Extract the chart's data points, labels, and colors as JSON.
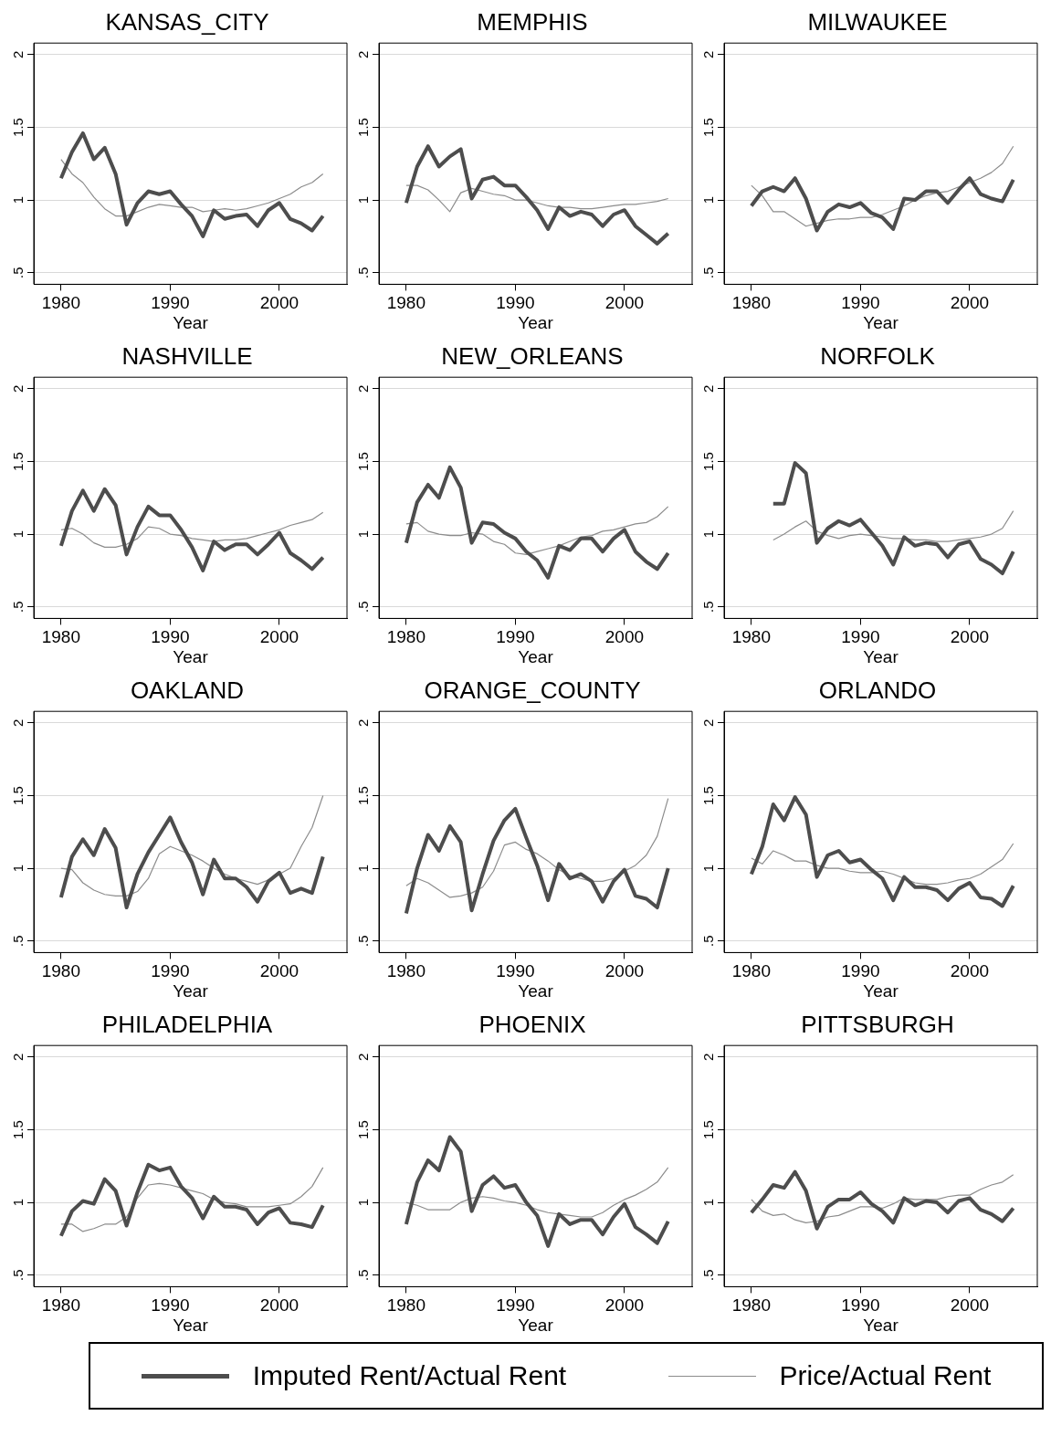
{
  "chart_data": [
    {
      "type": "line",
      "title": "KANSAS_CITY",
      "xlabel": "Year",
      "x": [
        1980,
        1981,
        1982,
        1983,
        1984,
        1985,
        1986,
        1987,
        1988,
        1989,
        1990,
        1991,
        1992,
        1993,
        1994,
        1995,
        1996,
        1997,
        1998,
        1999,
        2000,
        2001,
        2002,
        2003,
        2004
      ],
      "xlim": [
        1977.5,
        2006.2
      ],
      "xticks": [
        1980,
        1990,
        2000
      ],
      "ylim": [
        0.42,
        2.08
      ],
      "yticks": [
        {
          "value": 0.5,
          "label": ".5"
        },
        {
          "value": 1,
          "label": "1"
        },
        {
          "value": 1.5,
          "label": "1.5"
        },
        {
          "value": 2,
          "label": "2"
        }
      ],
      "grid": "y",
      "legend": "bottom",
      "series": [
        {
          "name": "Imputed Rent/Actual Rent",
          "color": "#4d4d4d",
          "values": [
            1.15,
            1.33,
            1.46,
            1.28,
            1.36,
            1.18,
            0.83,
            0.98,
            1.06,
            1.04,
            1.06,
            0.97,
            0.89,
            0.75,
            0.93,
            0.87,
            0.89,
            0.9,
            0.82,
            0.93,
            0.98,
            0.87,
            0.84,
            0.79,
            0.89
          ]
        },
        {
          "name": "Price/Actual Rent",
          "color": "#8c8c8c",
          "values": [
            1.28,
            1.18,
            1.12,
            1.02,
            0.94,
            0.89,
            0.89,
            0.92,
            0.95,
            0.97,
            0.96,
            0.95,
            0.95,
            0.92,
            0.93,
            0.94,
            0.93,
            0.94,
            0.96,
            0.98,
            1.01,
            1.04,
            1.09,
            1.12,
            1.18
          ]
        }
      ]
    },
    {
      "type": "line",
      "title": "MEMPHIS",
      "xlabel": "Year",
      "x": [
        1980,
        1981,
        1982,
        1983,
        1984,
        1985,
        1986,
        1987,
        1988,
        1989,
        1990,
        1991,
        1992,
        1993,
        1994,
        1995,
        1996,
        1997,
        1998,
        1999,
        2000,
        2001,
        2002,
        2003,
        2004
      ],
      "xlim": [
        1977.5,
        2006.2
      ],
      "xticks": [
        1980,
        1990,
        2000
      ],
      "ylim": [
        0.42,
        2.08
      ],
      "yticks": [
        {
          "value": 0.5,
          "label": ".5"
        },
        {
          "value": 1,
          "label": "1"
        },
        {
          "value": 1.5,
          "label": "1.5"
        },
        {
          "value": 2,
          "label": "2"
        }
      ],
      "grid": "y",
      "series": [
        {
          "color": "#4d4d4d",
          "values": [
            0.98,
            1.23,
            1.37,
            1.23,
            1.3,
            1.35,
            1.01,
            1.14,
            1.16,
            1.1,
            1.1,
            1.02,
            0.93,
            0.8,
            0.95,
            0.89,
            0.92,
            0.9,
            0.82,
            0.9,
            0.93,
            0.82,
            0.76,
            0.7,
            0.77
          ]
        },
        {
          "color": "#8c8c8c",
          "values": [
            1.1,
            1.1,
            1.07,
            1.0,
            0.92,
            1.05,
            1.08,
            1.06,
            1.04,
            1.03,
            1.0,
            1.0,
            0.98,
            0.96,
            0.95,
            0.95,
            0.94,
            0.94,
            0.95,
            0.96,
            0.97,
            0.97,
            0.98,
            0.99,
            1.01
          ]
        }
      ]
    },
    {
      "type": "line",
      "title": "MILWAUKEE",
      "xlabel": "Year",
      "x": [
        1980,
        1981,
        1982,
        1983,
        1984,
        1985,
        1986,
        1987,
        1988,
        1989,
        1990,
        1991,
        1992,
        1993,
        1994,
        1995,
        1996,
        1997,
        1998,
        1999,
        2000,
        2001,
        2002,
        2003,
        2004
      ],
      "xlim": [
        1977.5,
        2006.2
      ],
      "xticks": [
        1980,
        1990,
        2000
      ],
      "ylim": [
        0.42,
        2.08
      ],
      "yticks": [
        {
          "value": 0.5,
          "label": ".5"
        },
        {
          "value": 1,
          "label": "1"
        },
        {
          "value": 1.5,
          "label": "1.5"
        },
        {
          "value": 2,
          "label": "2"
        }
      ],
      "grid": "y",
      "series": [
        {
          "color": "#4d4d4d",
          "values": [
            0.96,
            1.06,
            1.09,
            1.06,
            1.15,
            1.01,
            0.79,
            0.92,
            0.97,
            0.95,
            0.98,
            0.91,
            0.88,
            0.8,
            1.01,
            1.0,
            1.06,
            1.06,
            0.98,
            1.07,
            1.15,
            1.04,
            1.01,
            0.99,
            1.14
          ]
        },
        {
          "color": "#8c8c8c",
          "values": [
            1.1,
            1.03,
            0.92,
            0.92,
            0.87,
            0.82,
            0.84,
            0.86,
            0.87,
            0.87,
            0.88,
            0.88,
            0.9,
            0.93,
            0.96,
            1.0,
            1.03,
            1.05,
            1.06,
            1.09,
            1.12,
            1.15,
            1.19,
            1.25,
            1.37
          ]
        }
      ]
    },
    {
      "type": "line",
      "title": "NASHVILLE",
      "xlabel": "Year",
      "x": [
        1980,
        1981,
        1982,
        1983,
        1984,
        1985,
        1986,
        1987,
        1988,
        1989,
        1990,
        1991,
        1992,
        1993,
        1994,
        1995,
        1996,
        1997,
        1998,
        1999,
        2000,
        2001,
        2002,
        2003,
        2004
      ],
      "xlim": [
        1977.5,
        2006.2
      ],
      "xticks": [
        1980,
        1990,
        2000
      ],
      "ylim": [
        0.42,
        2.08
      ],
      "yticks": [
        {
          "value": 0.5,
          "label": ".5"
        },
        {
          "value": 1,
          "label": "1"
        },
        {
          "value": 1.5,
          "label": "1.5"
        },
        {
          "value": 2,
          "label": "2"
        }
      ],
      "grid": "y",
      "series": [
        {
          "color": "#4d4d4d",
          "values": [
            0.92,
            1.16,
            1.3,
            1.16,
            1.31,
            1.2,
            0.86,
            1.05,
            1.19,
            1.13,
            1.13,
            1.03,
            0.91,
            0.75,
            0.95,
            0.89,
            0.93,
            0.93,
            0.86,
            0.93,
            1.01,
            0.87,
            0.82,
            0.76,
            0.84
          ]
        },
        {
          "color": "#8c8c8c",
          "values": [
            1.03,
            1.04,
            1.0,
            0.94,
            0.91,
            0.91,
            0.93,
            0.97,
            1.05,
            1.04,
            1.0,
            0.99,
            0.97,
            0.96,
            0.95,
            0.96,
            0.96,
            0.97,
            0.99,
            1.01,
            1.03,
            1.06,
            1.08,
            1.1,
            1.15
          ]
        }
      ]
    },
    {
      "type": "line",
      "title": "NEW_ORLEANS",
      "xlabel": "Year",
      "x": [
        1980,
        1981,
        1982,
        1983,
        1984,
        1985,
        1986,
        1987,
        1988,
        1989,
        1990,
        1991,
        1992,
        1993,
        1994,
        1995,
        1996,
        1997,
        1998,
        1999,
        2000,
        2001,
        2002,
        2003,
        2004
      ],
      "xlim": [
        1977.5,
        2006.2
      ],
      "xticks": [
        1980,
        1990,
        2000
      ],
      "ylim": [
        0.42,
        2.08
      ],
      "yticks": [
        {
          "value": 0.5,
          "label": ".5"
        },
        {
          "value": 1,
          "label": "1"
        },
        {
          "value": 1.5,
          "label": "1.5"
        },
        {
          "value": 2,
          "label": "2"
        }
      ],
      "grid": "y",
      "series": [
        {
          "color": "#4d4d4d",
          "values": [
            0.94,
            1.22,
            1.34,
            1.25,
            1.46,
            1.32,
            0.94,
            1.08,
            1.07,
            1.01,
            0.97,
            0.88,
            0.82,
            0.7,
            0.92,
            0.89,
            0.97,
            0.97,
            0.88,
            0.97,
            1.03,
            0.88,
            0.81,
            0.76,
            0.87
          ]
        },
        {
          "color": "#8c8c8c",
          "values": [
            1.07,
            1.08,
            1.02,
            1.0,
            0.99,
            0.99,
            1.01,
            1.0,
            0.95,
            0.93,
            0.87,
            0.86,
            0.88,
            0.9,
            0.92,
            0.95,
            0.98,
            0.99,
            1.02,
            1.03,
            1.05,
            1.07,
            1.08,
            1.12,
            1.19
          ]
        }
      ]
    },
    {
      "type": "line",
      "title": "NORFOLK",
      "xlabel": "Year",
      "x": [
        1982,
        1983,
        1984,
        1985,
        1986,
        1987,
        1988,
        1989,
        1990,
        1991,
        1992,
        1993,
        1994,
        1995,
        1996,
        1997,
        1998,
        1999,
        2000,
        2001,
        2002,
        2003,
        2004
      ],
      "xlim": [
        1977.5,
        2006.2
      ],
      "xticks": [
        1980,
        1990,
        2000
      ],
      "ylim": [
        0.42,
        2.08
      ],
      "yticks": [
        {
          "value": 0.5,
          "label": ".5"
        },
        {
          "value": 1,
          "label": "1"
        },
        {
          "value": 1.5,
          "label": "1.5"
        },
        {
          "value": 2,
          "label": "2"
        }
      ],
      "grid": "y",
      "series": [
        {
          "color": "#4d4d4d",
          "values": [
            1.21,
            1.21,
            1.49,
            1.42,
            0.94,
            1.04,
            1.09,
            1.06,
            1.1,
            1.01,
            0.92,
            0.79,
            0.98,
            0.92,
            0.94,
            0.93,
            0.84,
            0.93,
            0.95,
            0.83,
            0.79,
            0.73,
            0.88
          ]
        },
        {
          "color": "#8c8c8c",
          "values": [
            0.96,
            1.0,
            1.05,
            1.09,
            1.02,
            0.99,
            0.97,
            0.99,
            1.0,
            0.99,
            0.98,
            0.97,
            0.97,
            0.96,
            0.96,
            0.95,
            0.95,
            0.96,
            0.97,
            0.98,
            1.0,
            1.04,
            1.16
          ]
        }
      ]
    },
    {
      "type": "line",
      "title": "OAKLAND",
      "xlabel": "Year",
      "x": [
        1980,
        1981,
        1982,
        1983,
        1984,
        1985,
        1986,
        1987,
        1988,
        1989,
        1990,
        1991,
        1992,
        1993,
        1994,
        1995,
        1996,
        1997,
        1998,
        1999,
        2000,
        2001,
        2002,
        2003,
        2004
      ],
      "xlim": [
        1977.5,
        2006.2
      ],
      "xticks": [
        1980,
        1990,
        2000
      ],
      "ylim": [
        0.42,
        2.08
      ],
      "yticks": [
        {
          "value": 0.5,
          "label": ".5"
        },
        {
          "value": 1,
          "label": "1"
        },
        {
          "value": 1.5,
          "label": "1.5"
        },
        {
          "value": 2,
          "label": "2"
        }
      ],
      "grid": "y",
      "series": [
        {
          "color": "#4d4d4d",
          "values": [
            0.8,
            1.08,
            1.2,
            1.09,
            1.27,
            1.14,
            0.73,
            0.96,
            1.11,
            1.23,
            1.35,
            1.18,
            1.04,
            0.82,
            1.06,
            0.93,
            0.93,
            0.87,
            0.77,
            0.91,
            0.97,
            0.83,
            0.86,
            0.83,
            1.08
          ]
        },
        {
          "color": "#8c8c8c",
          "values": [
            1.0,
            0.99,
            0.9,
            0.85,
            0.82,
            0.81,
            0.81,
            0.84,
            0.93,
            1.1,
            1.15,
            1.12,
            1.09,
            1.05,
            1.0,
            0.96,
            0.93,
            0.91,
            0.89,
            0.92,
            0.96,
            1.0,
            1.15,
            1.28,
            1.5
          ]
        }
      ]
    },
    {
      "type": "line",
      "title": "ORANGE_COUNTY",
      "xlabel": "Year",
      "x": [
        1980,
        1981,
        1982,
        1983,
        1984,
        1985,
        1986,
        1987,
        1988,
        1989,
        1990,
        1991,
        1992,
        1993,
        1994,
        1995,
        1996,
        1997,
        1998,
        1999,
        2000,
        2001,
        2002,
        2003,
        2004
      ],
      "xlim": [
        1977.5,
        2006.2
      ],
      "xticks": [
        1980,
        1990,
        2000
      ],
      "ylim": [
        0.42,
        2.08
      ],
      "yticks": [
        {
          "value": 0.5,
          "label": ".5"
        },
        {
          "value": 1,
          "label": "1"
        },
        {
          "value": 1.5,
          "label": "1.5"
        },
        {
          "value": 2,
          "label": "2"
        }
      ],
      "grid": "y",
      "series": [
        {
          "color": "#4d4d4d",
          "values": [
            0.69,
            1.0,
            1.23,
            1.12,
            1.29,
            1.18,
            0.71,
            0.96,
            1.19,
            1.33,
            1.41,
            1.21,
            1.02,
            0.78,
            1.03,
            0.93,
            0.96,
            0.91,
            0.77,
            0.91,
            0.99,
            0.81,
            0.79,
            0.73,
            1.0
          ]
        },
        {
          "color": "#8c8c8c",
          "values": [
            0.88,
            0.93,
            0.9,
            0.85,
            0.8,
            0.81,
            0.83,
            0.87,
            0.98,
            1.16,
            1.18,
            1.13,
            1.1,
            1.05,
            0.99,
            0.95,
            0.93,
            0.91,
            0.91,
            0.93,
            0.98,
            1.02,
            1.09,
            1.22,
            1.48
          ]
        }
      ]
    },
    {
      "type": "line",
      "title": "ORLANDO",
      "xlabel": "Year",
      "x": [
        1980,
        1981,
        1982,
        1983,
        1984,
        1985,
        1986,
        1987,
        1988,
        1989,
        1990,
        1991,
        1992,
        1993,
        1994,
        1995,
        1996,
        1997,
        1998,
        1999,
        2000,
        2001,
        2002,
        2003,
        2004
      ],
      "xlim": [
        1977.5,
        2006.2
      ],
      "xticks": [
        1980,
        1990,
        2000
      ],
      "ylim": [
        0.42,
        2.08
      ],
      "yticks": [
        {
          "value": 0.5,
          "label": ".5"
        },
        {
          "value": 1,
          "label": "1"
        },
        {
          "value": 1.5,
          "label": "1.5"
        },
        {
          "value": 2,
          "label": "2"
        }
      ],
      "grid": "y",
      "series": [
        {
          "color": "#4d4d4d",
          "values": [
            0.96,
            1.15,
            1.44,
            1.33,
            1.49,
            1.37,
            0.94,
            1.09,
            1.12,
            1.04,
            1.06,
            0.99,
            0.93,
            0.78,
            0.94,
            0.87,
            0.87,
            0.85,
            0.78,
            0.86,
            0.9,
            0.8,
            0.79,
            0.74,
            0.88
          ]
        },
        {
          "color": "#8c8c8c",
          "values": [
            1.07,
            1.03,
            1.12,
            1.09,
            1.05,
            1.05,
            1.02,
            1.0,
            1.0,
            0.98,
            0.97,
            0.97,
            0.98,
            0.96,
            0.93,
            0.9,
            0.89,
            0.89,
            0.9,
            0.92,
            0.93,
            0.96,
            1.01,
            1.06,
            1.17
          ]
        }
      ]
    },
    {
      "type": "line",
      "title": "PHILADELPHIA",
      "xlabel": "Year",
      "x": [
        1980,
        1981,
        1982,
        1983,
        1984,
        1985,
        1986,
        1987,
        1988,
        1989,
        1990,
        1991,
        1992,
        1993,
        1994,
        1995,
        1996,
        1997,
        1998,
        1999,
        2000,
        2001,
        2002,
        2003,
        2004
      ],
      "xlim": [
        1977.5,
        2006.2
      ],
      "xticks": [
        1980,
        1990,
        2000
      ],
      "ylim": [
        0.42,
        2.08
      ],
      "yticks": [
        {
          "value": 0.5,
          "label": ".5"
        },
        {
          "value": 1,
          "label": "1"
        },
        {
          "value": 1.5,
          "label": "1.5"
        },
        {
          "value": 2,
          "label": "2"
        }
      ],
      "grid": "y",
      "series": [
        {
          "color": "#4d4d4d",
          "values": [
            0.77,
            0.94,
            1.01,
            0.99,
            1.16,
            1.08,
            0.84,
            1.07,
            1.26,
            1.22,
            1.24,
            1.11,
            1.03,
            0.89,
            1.04,
            0.97,
            0.97,
            0.95,
            0.85,
            0.93,
            0.96,
            0.86,
            0.85,
            0.83,
            0.98
          ]
        },
        {
          "color": "#8c8c8c",
          "values": [
            0.85,
            0.85,
            0.8,
            0.82,
            0.85,
            0.85,
            0.9,
            1.03,
            1.12,
            1.13,
            1.12,
            1.1,
            1.08,
            1.06,
            1.02,
            1.0,
            0.99,
            0.97,
            0.97,
            0.97,
            0.98,
            0.99,
            1.04,
            1.11,
            1.24
          ]
        }
      ]
    },
    {
      "type": "line",
      "title": "PHOENIX",
      "xlabel": "Year",
      "x": [
        1980,
        1981,
        1982,
        1983,
        1984,
        1985,
        1986,
        1987,
        1988,
        1989,
        1990,
        1991,
        1992,
        1993,
        1994,
        1995,
        1996,
        1997,
        1998,
        1999,
        2000,
        2001,
        2002,
        2003,
        2004
      ],
      "xlim": [
        1977.5,
        2006.2
      ],
      "xticks": [
        1980,
        1990,
        2000
      ],
      "ylim": [
        0.42,
        2.08
      ],
      "yticks": [
        {
          "value": 0.5,
          "label": ".5"
        },
        {
          "value": 1,
          "label": "1"
        },
        {
          "value": 1.5,
          "label": "1.5"
        },
        {
          "value": 2,
          "label": "2"
        }
      ],
      "grid": "y",
      "series": [
        {
          "color": "#4d4d4d",
          "values": [
            0.85,
            1.14,
            1.29,
            1.22,
            1.45,
            1.35,
            0.94,
            1.12,
            1.18,
            1.1,
            1.12,
            1.0,
            0.91,
            0.7,
            0.92,
            0.85,
            0.88,
            0.88,
            0.78,
            0.9,
            0.99,
            0.83,
            0.78,
            0.72,
            0.87
          ]
        },
        {
          "color": "#8c8c8c",
          "values": [
            1.0,
            0.98,
            0.95,
            0.95,
            0.95,
            1.0,
            1.03,
            1.04,
            1.03,
            1.01,
            1.0,
            0.98,
            0.95,
            0.93,
            0.92,
            0.91,
            0.9,
            0.9,
            0.93,
            0.98,
            1.02,
            1.05,
            1.09,
            1.14,
            1.24
          ]
        }
      ]
    },
    {
      "type": "line",
      "title": "PITTSBURGH",
      "xlabel": "Year",
      "x": [
        1980,
        1981,
        1982,
        1983,
        1984,
        1985,
        1986,
        1987,
        1988,
        1989,
        1990,
        1991,
        1992,
        1993,
        1994,
        1995,
        1996,
        1997,
        1998,
        1999,
        2000,
        2001,
        2002,
        2003,
        2004
      ],
      "xlim": [
        1977.5,
        2006.2
      ],
      "xticks": [
        1980,
        1990,
        2000
      ],
      "ylim": [
        0.42,
        2.08
      ],
      "yticks": [
        {
          "value": 0.5,
          "label": ".5"
        },
        {
          "value": 1,
          "label": "1"
        },
        {
          "value": 1.5,
          "label": "1.5"
        },
        {
          "value": 2,
          "label": "2"
        }
      ],
      "grid": "y",
      "series": [
        {
          "color": "#4d4d4d",
          "values": [
            0.93,
            1.02,
            1.12,
            1.1,
            1.21,
            1.08,
            0.82,
            0.97,
            1.02,
            1.02,
            1.07,
            0.99,
            0.94,
            0.86,
            1.03,
            0.98,
            1.01,
            1.0,
            0.93,
            1.01,
            1.03,
            0.95,
            0.92,
            0.87,
            0.96
          ]
        },
        {
          "color": "#8c8c8c",
          "values": [
            1.02,
            0.94,
            0.91,
            0.92,
            0.88,
            0.86,
            0.87,
            0.9,
            0.91,
            0.94,
            0.97,
            0.97,
            0.96,
            0.99,
            1.03,
            1.02,
            1.02,
            1.02,
            1.04,
            1.05,
            1.05,
            1.09,
            1.12,
            1.14,
            1.19
          ]
        }
      ]
    }
  ]
}
